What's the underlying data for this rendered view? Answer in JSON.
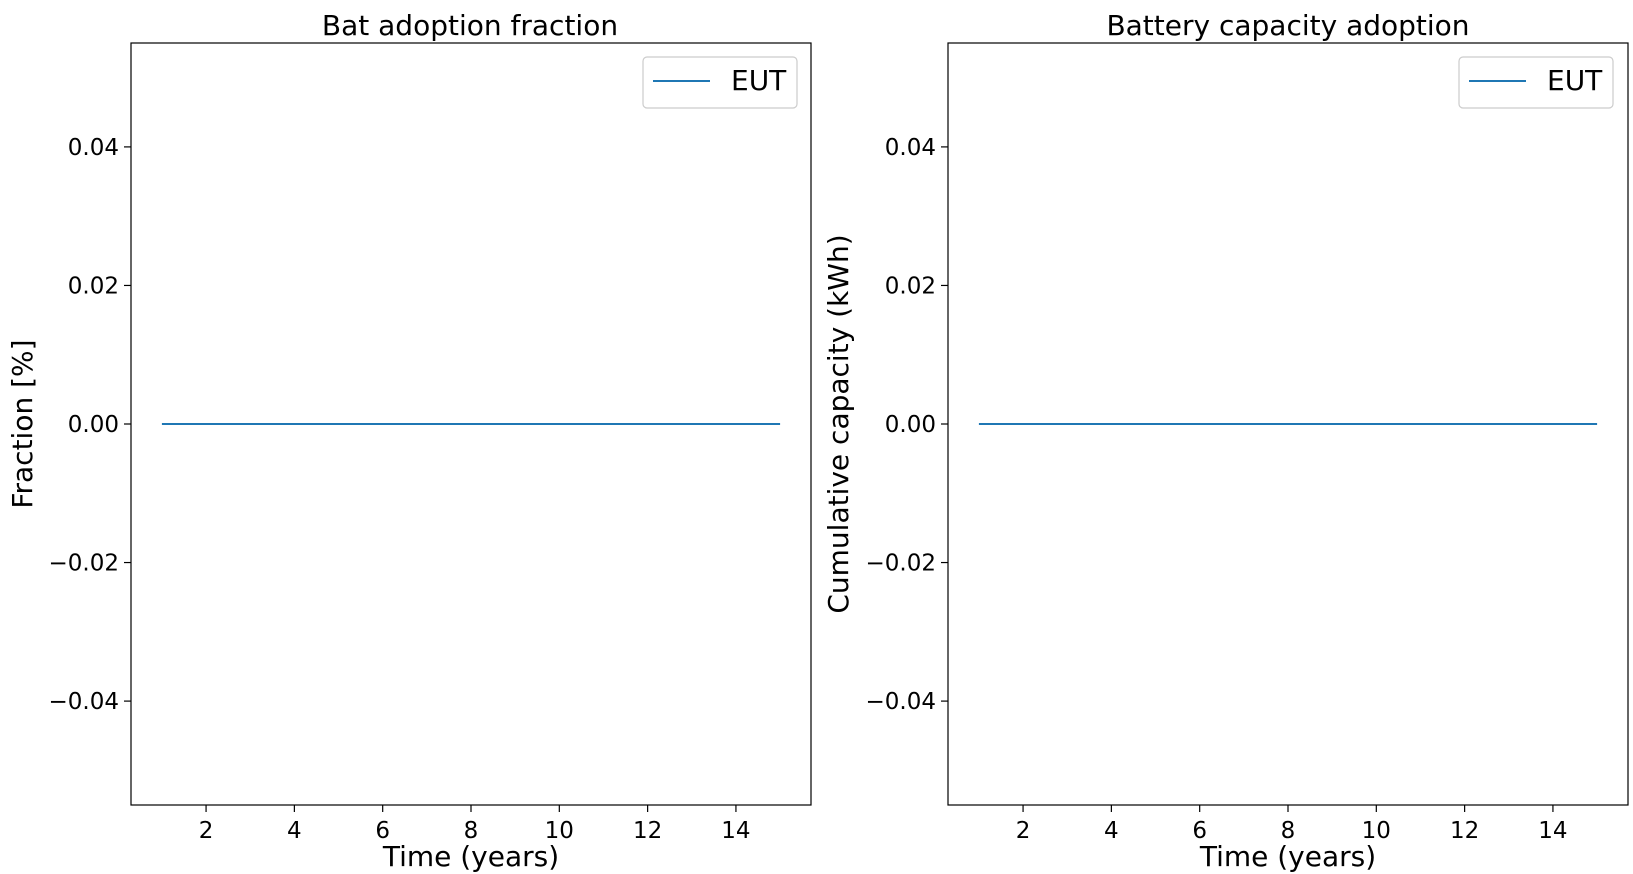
{
  "chart_data": [
    {
      "type": "line",
      "title": "Bat adoption fraction",
      "xlabel": "Time (years)",
      "ylabel": "Fraction [%]",
      "x": [
        1,
        2,
        3,
        4,
        5,
        6,
        7,
        8,
        9,
        10,
        11,
        12,
        13,
        14,
        15
      ],
      "series": [
        {
          "name": "EUT",
          "color": "#1f77b4",
          "values": [
            0,
            0,
            0,
            0,
            0,
            0,
            0,
            0,
            0,
            0,
            0,
            0,
            0,
            0,
            0
          ]
        }
      ],
      "xticks": [
        2,
        4,
        6,
        8,
        10,
        12,
        14
      ],
      "xtick_labels": [
        "2",
        "4",
        "6",
        "8",
        "10",
        "12",
        "14"
      ],
      "yticks": [
        -0.04,
        -0.02,
        0.0,
        0.02,
        0.04
      ],
      "ytick_labels": [
        "−0.04",
        "−0.02",
        "0.00",
        "0.02",
        "0.04"
      ],
      "xlim": [
        0.3,
        15.7
      ],
      "ylim": [
        -0.055,
        0.055
      ],
      "grid": false,
      "legend_position": "top-right"
    },
    {
      "type": "line",
      "title": "Battery capacity adoption",
      "xlabel": "Time (years)",
      "ylabel": "Cumulative capacity (kWh)",
      "x": [
        1,
        2,
        3,
        4,
        5,
        6,
        7,
        8,
        9,
        10,
        11,
        12,
        13,
        14,
        15
      ],
      "series": [
        {
          "name": "EUT",
          "color": "#1f77b4",
          "values": [
            0,
            0,
            0,
            0,
            0,
            0,
            0,
            0,
            0,
            0,
            0,
            0,
            0,
            0,
            0
          ]
        }
      ],
      "xticks": [
        2,
        4,
        6,
        8,
        10,
        12,
        14
      ],
      "xtick_labels": [
        "2",
        "4",
        "6",
        "8",
        "10",
        "12",
        "14"
      ],
      "yticks": [
        -0.04,
        -0.02,
        0.0,
        0.02,
        0.04
      ],
      "ytick_labels": [
        "−0.04",
        "−0.02",
        "0.00",
        "0.02",
        "0.04"
      ],
      "xlim": [
        0.3,
        15.7
      ],
      "ylim": [
        -0.055,
        0.055
      ],
      "grid": false,
      "legend_position": "top-right"
    }
  ]
}
